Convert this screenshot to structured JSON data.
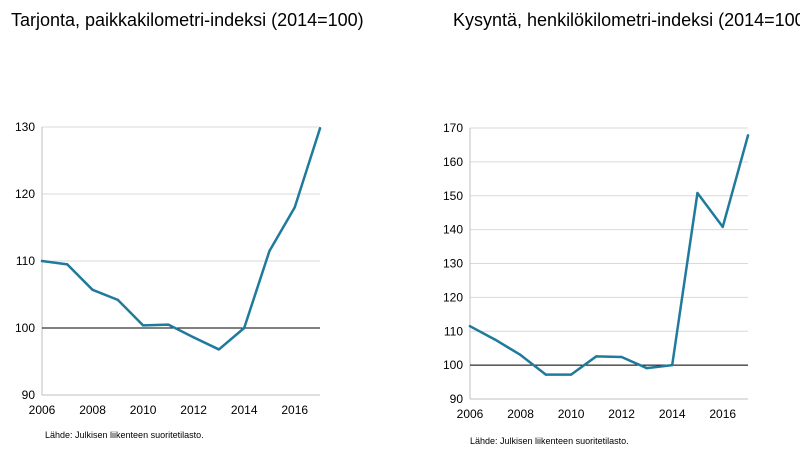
{
  "chart_data": [
    {
      "type": "line",
      "title": "Tarjonta, paikkakilometri-indeksi (2014=100)",
      "source": "Lähde: Julkisen liikenteen suoritetilasto.",
      "xlabel": "",
      "ylabel": "",
      "x": [
        2006,
        2007,
        2008,
        2009,
        2010,
        2011,
        2012,
        2013,
        2014,
        2015,
        2016,
        2017
      ],
      "series": [
        {
          "values": [
            110.0,
            109.5,
            105.7,
            104.2,
            100.4,
            100.5,
            98.6,
            96.8,
            100.0,
            111.5,
            118.0,
            129.8
          ],
          "color": "#1f7a9c"
        }
      ],
      "xticks": [
        2006,
        2008,
        2010,
        2012,
        2014,
        2016
      ],
      "yticks": [
        90,
        100,
        110,
        120,
        130
      ],
      "ylim": [
        90,
        130
      ],
      "xlim": [
        2006,
        2017
      ],
      "reference_line": 100,
      "grid": "horizontal"
    },
    {
      "type": "line",
      "title": "Kysyntä, henkilökilometri-indeksi (2014=100)",
      "source": "Lähde: Julkisen liikenteen suoritetilasto.",
      "xlabel": "",
      "ylabel": "",
      "x": [
        2006,
        2007,
        2008,
        2009,
        2010,
        2011,
        2012,
        2013,
        2014,
        2015,
        2016,
        2017
      ],
      "series": [
        {
          "values": [
            111.5,
            107.5,
            103.0,
            97.2,
            97.2,
            102.6,
            102.4,
            99.1,
            100.0,
            150.8,
            140.8,
            167.8
          ],
          "color": "#1f7a9c"
        }
      ],
      "xticks": [
        2006,
        2008,
        2010,
        2012,
        2014,
        2016
      ],
      "yticks": [
        90,
        100,
        110,
        120,
        130,
        140,
        150,
        160,
        170
      ],
      "ylim": [
        90,
        170
      ],
      "xlim": [
        2006,
        2017
      ],
      "reference_line": 100,
      "grid": "horizontal"
    }
  ]
}
